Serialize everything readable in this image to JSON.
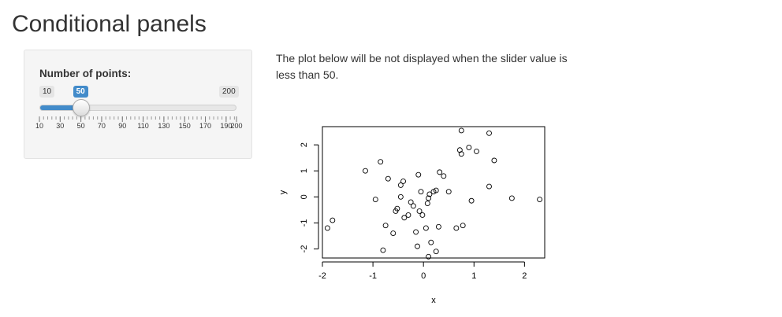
{
  "page": {
    "title": "Conditional panels"
  },
  "slider": {
    "label": "Number of points:",
    "min": 10,
    "max": 200,
    "value": 50,
    "min_label": "10",
    "max_label": "200",
    "value_label": "50",
    "grid_labels": [
      "10",
      "30",
      "50",
      "70",
      "90",
      "110",
      "130",
      "150",
      "170",
      "190",
      "200"
    ],
    "accent": "#428bca"
  },
  "description": "The plot below will be not displayed when the slider value is less than 50.",
  "chart_data": {
    "type": "scatter",
    "xlabel": "x",
    "ylabel": "y",
    "xlim": [
      -2.0,
      2.4
    ],
    "ylim": [
      -2.35,
      2.7
    ],
    "xticks": [
      "-2",
      "-1",
      "0",
      "1",
      "2"
    ],
    "yticks": [
      "-2",
      "-1",
      "0",
      "1",
      "2"
    ],
    "points": [
      [
        -1.9,
        -1.2
      ],
      [
        -1.8,
        -0.9
      ],
      [
        -1.15,
        1.0
      ],
      [
        -0.95,
        -0.1
      ],
      [
        -0.85,
        1.35
      ],
      [
        -0.8,
        -2.05
      ],
      [
        -0.75,
        -1.1
      ],
      [
        -0.7,
        0.7
      ],
      [
        -0.6,
        -1.4
      ],
      [
        -0.55,
        -0.55
      ],
      [
        -0.52,
        -0.45
      ],
      [
        -0.45,
        0.0
      ],
      [
        -0.45,
        0.45
      ],
      [
        -0.4,
        0.6
      ],
      [
        -0.38,
        -0.8
      ],
      [
        -0.3,
        -0.7
      ],
      [
        -0.25,
        -0.2
      ],
      [
        -0.2,
        -0.35
      ],
      [
        -0.15,
        -1.35
      ],
      [
        -0.12,
        -1.9
      ],
      [
        -0.1,
        0.85
      ],
      [
        -0.08,
        -0.55
      ],
      [
        -0.05,
        0.2
      ],
      [
        -0.02,
        -0.7
      ],
      [
        0.05,
        -1.2
      ],
      [
        0.08,
        -0.25
      ],
      [
        0.1,
        -0.05
      ],
      [
        0.12,
        0.1
      ],
      [
        0.15,
        -1.75
      ],
      [
        0.1,
        -2.3
      ],
      [
        0.2,
        0.2
      ],
      [
        0.25,
        0.25
      ],
      [
        0.25,
        -2.1
      ],
      [
        0.3,
        -1.15
      ],
      [
        0.32,
        0.95
      ],
      [
        0.4,
        0.8
      ],
      [
        0.5,
        0.2
      ],
      [
        0.65,
        -1.2
      ],
      [
        0.72,
        1.8
      ],
      [
        0.75,
        1.65
      ],
      [
        0.78,
        -1.1
      ],
      [
        0.75,
        2.55
      ],
      [
        0.9,
        1.9
      ],
      [
        0.95,
        -0.15
      ],
      [
        1.05,
        1.75
      ],
      [
        1.3,
        2.45
      ],
      [
        1.3,
        0.4
      ],
      [
        1.4,
        1.4
      ],
      [
        1.75,
        -0.05
      ],
      [
        2.3,
        -0.1
      ]
    ]
  }
}
